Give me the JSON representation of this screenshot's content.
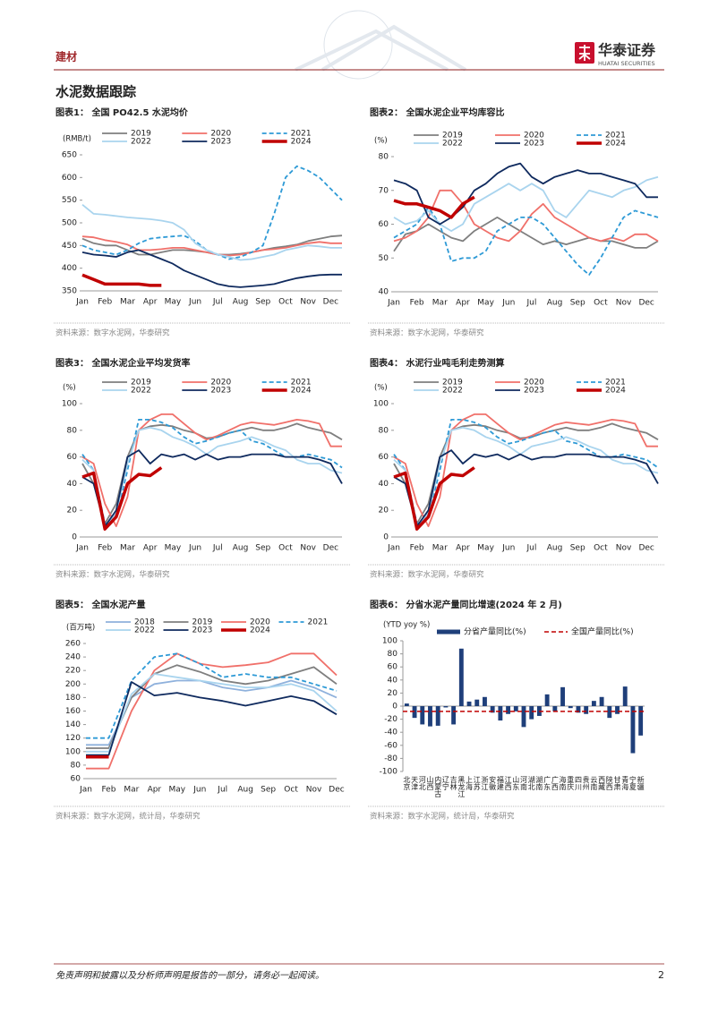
{
  "header": {
    "sector": "建材",
    "brand": "华泰证券",
    "brand_en": "HUATAI SECURITIES"
  },
  "section_title": "水泥数据跟踪",
  "chart_data": [
    {
      "type": "line",
      "title": "图表1： 全国 PO42.5 水泥均价",
      "source": "资料来源：数字水泥网，华泰研究",
      "y_label": "(RMB/t)",
      "categories": [
        "Jan",
        null,
        "Feb",
        null,
        "Mar",
        null,
        "Apr",
        null,
        "May",
        null,
        "Jun",
        null,
        "Jul",
        null,
        "Aug",
        null,
        "Sep",
        null,
        "Oct",
        null,
        "Nov",
        null,
        "Dec",
        null
      ],
      "ylim": [
        350,
        650
      ],
      "yticks": [
        350,
        400,
        450,
        500,
        550,
        600,
        650
      ],
      "legend_columns": 3,
      "series": [
        {
          "name": "2019",
          "color": "#7f7f7f",
          "values": [
            465,
            455,
            450,
            450,
            440,
            430,
            430,
            435,
            440,
            440,
            438,
            435,
            430,
            430,
            432,
            435,
            440,
            445,
            448,
            452,
            460,
            465,
            470,
            472
          ]
        },
        {
          "name": "2020",
          "color": "#f0706a",
          "values": [
            470,
            468,
            462,
            458,
            452,
            440,
            440,
            442,
            445,
            445,
            440,
            435,
            430,
            428,
            430,
            435,
            440,
            442,
            445,
            450,
            455,
            458,
            455,
            455
          ]
        },
        {
          "name": "2021",
          "color": "#2e9ad6",
          "dashed": true,
          "values": [
            450,
            440,
            435,
            430,
            440,
            455,
            465,
            468,
            470,
            472,
            460,
            440,
            430,
            420,
            425,
            435,
            450,
            520,
            600,
            625,
            615,
            600,
            575,
            550
          ]
        },
        {
          "name": "2022",
          "color": "#a9d4ee",
          "values": [
            540,
            520,
            518,
            515,
            512,
            510,
            508,
            505,
            500,
            485,
            455,
            440,
            430,
            425,
            418,
            420,
            425,
            430,
            440,
            445,
            450,
            448,
            445,
            445
          ]
        },
        {
          "name": "2023",
          "color": "#0f2a5e",
          "values": [
            435,
            430,
            428,
            425,
            435,
            440,
            430,
            420,
            410,
            395,
            385,
            375,
            365,
            360,
            358,
            360,
            362,
            365,
            372,
            378,
            382,
            385,
            386,
            386
          ]
        },
        {
          "name": "2024",
          "color": "#c00000",
          "line_width": 3.5,
          "values": [
            385,
            375,
            365,
            365,
            365,
            365,
            362,
            362,
            null,
            null,
            null,
            null,
            null,
            null,
            null,
            null,
            null,
            null,
            null,
            null,
            null,
            null,
            null,
            null
          ]
        }
      ]
    },
    {
      "type": "line",
      "title": "图表2： 全国水泥企业平均库容比",
      "source": "资料来源：数字水泥网，华泰研究",
      "y_label": "(%)",
      "categories": [
        "Jan",
        null,
        "Feb",
        null,
        "Mar",
        null,
        "Apr",
        null,
        "May",
        null,
        "Jun",
        null,
        "Jul",
        null,
        "Aug",
        null,
        "Sep",
        null,
        "Oct",
        null,
        "Nov",
        null,
        "Dec",
        null
      ],
      "ylim": [
        40,
        80
      ],
      "yticks": [
        40,
        50,
        60,
        70,
        80
      ],
      "legend_columns": 3,
      "series": [
        {
          "name": "2019",
          "color": "#7f7f7f",
          "values": [
            52,
            57,
            58,
            60,
            58,
            56,
            55,
            58,
            60,
            62,
            60,
            58,
            56,
            54,
            55,
            54,
            55,
            56,
            55,
            55,
            54,
            53,
            53,
            55
          ]
        },
        {
          "name": "2020",
          "color": "#f0706a",
          "values": [
            55,
            56,
            58,
            62,
            70,
            70,
            66,
            60,
            58,
            56,
            55,
            58,
            63,
            66,
            62,
            60,
            58,
            56,
            55,
            56,
            55,
            57,
            57,
            55
          ]
        },
        {
          "name": "2021",
          "color": "#2e9ad6",
          "dashed": true,
          "values": [
            56,
            58,
            60,
            65,
            60,
            49,
            50,
            50,
            52,
            58,
            60,
            62,
            62,
            60,
            56,
            52,
            48,
            45,
            50,
            56,
            62,
            64,
            63,
            62
          ]
        },
        {
          "name": "2022",
          "color": "#a9d4ee",
          "values": [
            62,
            60,
            61,
            64,
            60,
            58,
            60,
            66,
            68,
            70,
            72,
            70,
            72,
            70,
            64,
            62,
            66,
            70,
            69,
            68,
            70,
            71,
            73,
            74
          ]
        },
        {
          "name": "2023",
          "color": "#0f2a5e",
          "values": [
            73,
            72,
            70,
            62,
            60,
            62,
            65,
            70,
            72,
            75,
            77,
            78,
            74,
            72,
            74,
            75,
            76,
            75,
            75,
            74,
            73,
            72,
            68,
            68
          ]
        },
        {
          "name": "2024",
          "color": "#c00000",
          "line_width": 3.5,
          "values": [
            67,
            66,
            66,
            65,
            64,
            62,
            66,
            68,
            null,
            null,
            null,
            null,
            null,
            null,
            null,
            null,
            null,
            null,
            null,
            null,
            null,
            null,
            null,
            null
          ]
        }
      ]
    },
    {
      "type": "line",
      "title": "图表3： 全国水泥企业平均发货率",
      "source": "资料来源：数字水泥网，华泰研究",
      "y_label": "(%)",
      "categories": [
        "Jan",
        null,
        "Feb",
        null,
        "Mar",
        null,
        "Apr",
        null,
        "May",
        null,
        "Jun",
        null,
        "Jul",
        null,
        "Aug",
        null,
        "Sep",
        null,
        "Oct",
        null,
        "Nov",
        null,
        "Dec",
        null
      ],
      "ylim": [
        0,
        100
      ],
      "yticks": [
        0,
        20,
        40,
        60,
        80,
        100
      ],
      "legend_columns": 3,
      "series": [
        {
          "name": "2019",
          "color": "#7f7f7f",
          "values": [
            55,
            40,
            10,
            25,
            60,
            80,
            83,
            84,
            83,
            80,
            78,
            74,
            75,
            78,
            80,
            82,
            80,
            80,
            82,
            85,
            82,
            80,
            78,
            73
          ]
        },
        {
          "name": "2020",
          "color": "#f0706a",
          "values": [
            60,
            55,
            25,
            8,
            30,
            80,
            88,
            92,
            92,
            85,
            78,
            73,
            76,
            80,
            84,
            86,
            85,
            84,
            86,
            88,
            87,
            85,
            68,
            68
          ]
        },
        {
          "name": "2021",
          "color": "#2e9ad6",
          "dashed": true,
          "values": [
            62,
            50,
            10,
            15,
            50,
            88,
            88,
            86,
            82,
            75,
            70,
            72,
            75,
            78,
            80,
            72,
            70,
            65,
            60,
            60,
            62,
            60,
            58,
            52
          ]
        },
        {
          "name": "2022",
          "color": "#a9d4ee",
          "values": [
            58,
            50,
            8,
            18,
            55,
            80,
            82,
            80,
            75,
            72,
            68,
            62,
            68,
            70,
            72,
            75,
            72,
            68,
            65,
            58,
            55,
            55,
            50,
            48
          ]
        },
        {
          "name": "2023",
          "color": "#0f2a5e",
          "values": [
            45,
            40,
            8,
            20,
            60,
            65,
            55,
            62,
            60,
            62,
            58,
            62,
            58,
            60,
            60,
            62,
            62,
            62,
            60,
            60,
            60,
            58,
            55,
            40
          ]
        },
        {
          "name": "2024",
          "color": "#c00000",
          "line_width": 3.5,
          "values": [
            45,
            48,
            6,
            15,
            40,
            47,
            46,
            52,
            null,
            null,
            null,
            null,
            null,
            null,
            null,
            null,
            null,
            null,
            null,
            null,
            null,
            null,
            null,
            null
          ]
        }
      ]
    },
    {
      "type": "line",
      "title": "图表4： 水泥行业吨毛利走势测算",
      "source": "资料来源：数字水泥网，华泰研究",
      "y_label": "(%)",
      "categories": [
        "Jan",
        null,
        "Feb",
        null,
        "Mar",
        null,
        "Apr",
        null,
        "May",
        null,
        "Jun",
        null,
        "Jul",
        null,
        "Aug",
        null,
        "Sep",
        null,
        "Oct",
        null,
        "Nov",
        null,
        "Dec",
        null
      ],
      "ylim": [
        0,
        100
      ],
      "yticks": [
        0,
        20,
        40,
        60,
        80,
        100
      ],
      "legend_columns": 3,
      "series": [
        {
          "name": "2019",
          "color": "#7f7f7f",
          "values": [
            55,
            40,
            10,
            25,
            60,
            80,
            83,
            84,
            83,
            80,
            78,
            74,
            75,
            78,
            80,
            82,
            80,
            80,
            82,
            85,
            82,
            80,
            78,
            73
          ]
        },
        {
          "name": "2020",
          "color": "#f0706a",
          "values": [
            60,
            55,
            25,
            8,
            30,
            80,
            88,
            92,
            92,
            85,
            78,
            73,
            76,
            80,
            84,
            86,
            85,
            84,
            86,
            88,
            87,
            85,
            68,
            68
          ]
        },
        {
          "name": "2021",
          "color": "#2e9ad6",
          "dashed": true,
          "values": [
            62,
            50,
            10,
            15,
            50,
            88,
            88,
            86,
            82,
            75,
            70,
            72,
            75,
            78,
            80,
            72,
            70,
            65,
            60,
            60,
            62,
            60,
            58,
            52
          ]
        },
        {
          "name": "2022",
          "color": "#a9d4ee",
          "values": [
            58,
            50,
            8,
            18,
            55,
            80,
            82,
            80,
            75,
            72,
            68,
            62,
            68,
            70,
            72,
            75,
            72,
            68,
            65,
            58,
            55,
            55,
            50,
            48
          ]
        },
        {
          "name": "2023",
          "color": "#0f2a5e",
          "values": [
            45,
            40,
            8,
            20,
            60,
            65,
            55,
            62,
            60,
            62,
            58,
            62,
            58,
            60,
            60,
            62,
            62,
            62,
            60,
            60,
            60,
            58,
            55,
            40
          ]
        },
        {
          "name": "2024",
          "color": "#c00000",
          "line_width": 3.5,
          "values": [
            45,
            48,
            6,
            15,
            40,
            47,
            46,
            52,
            null,
            null,
            null,
            null,
            null,
            null,
            null,
            null,
            null,
            null,
            null,
            null,
            null,
            null,
            null,
            null
          ]
        }
      ]
    },
    {
      "type": "line",
      "title": "图表5： 全国水泥产量",
      "source": "资料来源：数字水泥网，统计局，华泰研究",
      "y_label": "(百万吨)",
      "categories": [
        "Jan",
        "Feb",
        "Mar",
        "Apr",
        "May",
        "Jun",
        "Jul",
        "Aug",
        "Sep",
        "Oct",
        "Nov",
        "Dec"
      ],
      "ylim": [
        60,
        260
      ],
      "yticks": [
        60,
        80,
        100,
        120,
        140,
        160,
        180,
        200,
        220,
        240,
        260
      ],
      "legend_columns": 4,
      "series": [
        {
          "name": "2018",
          "color": "#8fb1dc",
          "values": [
            110,
            110,
            180,
            200,
            205,
            205,
            195,
            190,
            195,
            205,
            195,
            180
          ]
        },
        {
          "name": "2019",
          "color": "#7f7f7f",
          "values": [
            105,
            105,
            180,
            215,
            228,
            218,
            205,
            200,
            205,
            215,
            225,
            200
          ]
        },
        {
          "name": "2020",
          "color": "#f0706a",
          "values": [
            75,
            75,
            160,
            220,
            245,
            230,
            225,
            228,
            232,
            245,
            245,
            213
          ]
        },
        {
          "name": "2021",
          "color": "#2e9ad6",
          "dashed": true,
          "values": [
            120,
            120,
            205,
            240,
            245,
            230,
            210,
            215,
            210,
            210,
            200,
            190
          ]
        },
        {
          "name": "2022",
          "color": "#a9d4ee",
          "values": [
            100,
            100,
            185,
            215,
            210,
            205,
            200,
            195,
            195,
            200,
            190,
            160
          ]
        },
        {
          "name": "2023",
          "color": "#0f2a5e",
          "values": [
            95,
            95,
            203,
            183,
            187,
            180,
            175,
            168,
            175,
            182,
            175,
            155
          ]
        },
        {
          "name": "2024",
          "color": "#c00000",
          "line_width": 3.5,
          "values": [
            92,
            92,
            null,
            null,
            null,
            null,
            null,
            null,
            null,
            null,
            null,
            null
          ]
        }
      ]
    },
    {
      "type": "bar",
      "title": "图表6： 分省水泥产量同比增速(2024 年 2 月)",
      "source": "资料来源：数字水泥网，统计局，华泰研究",
      "y_label": "(YTD yoy %)",
      "categories": [
        "北京",
        "天津",
        "河北",
        "山西",
        "内蒙古",
        "辽宁",
        "吉林",
        "黑龙江",
        "上海",
        "江苏",
        "浙江",
        "安徽",
        "福建",
        "江西",
        "山东",
        "河南",
        "湖北",
        "湖南",
        "广东",
        "广西",
        "海南",
        "重庆",
        "四川",
        "贵州",
        "云南",
        "西藏",
        "陕西",
        "甘肃",
        "青海",
        "宁夏",
        "新疆"
      ],
      "ylim": [
        -100,
        100
      ],
      "yticks": [
        -100,
        -80,
        -60,
        -40,
        -20,
        0,
        20,
        40,
        60,
        80,
        100
      ],
      "series": [
        {
          "name": "分省产量同比(%)",
          "color": "#1f3f7a",
          "values": [
            4,
            -18,
            -28,
            -31,
            -30,
            -2,
            -28,
            88,
            7,
            10,
            14,
            -10,
            -22,
            -12,
            -8,
            -32,
            -20,
            -15,
            18,
            -8,
            29,
            -3,
            -10,
            -12,
            8,
            14,
            -18,
            -12,
            30,
            -72,
            -45
          ]
        }
      ],
      "reference": {
        "name": "全国产量同比(%)",
        "color": "#c00000",
        "value": -8
      }
    }
  ],
  "footer": {
    "disclaimer": "免责声明和披露以及分析师声明是报告的一部分，请务必一起阅读。",
    "page": 2
  }
}
